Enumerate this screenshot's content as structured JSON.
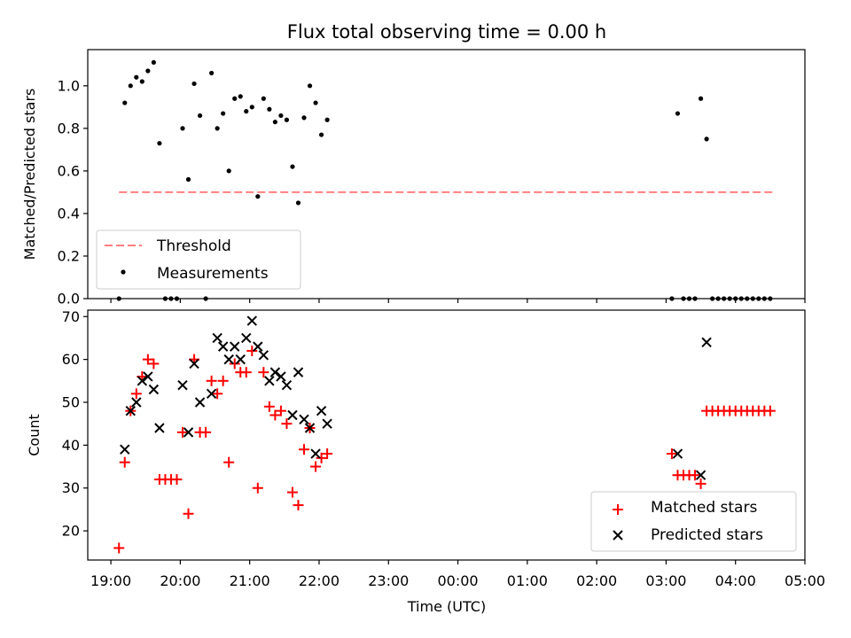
{
  "chart_data": [
    {
      "type": "scatter",
      "title": "Flux total observing time = 0.00 h",
      "ylabel": "Matched/Predicted stars",
      "xlabel": "",
      "ylim": [
        0.0,
        1.17
      ],
      "xlim": [
        "18:40",
        "05:00"
      ],
      "x_ticks": [
        "19:00",
        "20:00",
        "21:00",
        "22:00",
        "23:00",
        "00:00",
        "01:00",
        "02:00",
        "03:00",
        "04:00",
        "05:00"
      ],
      "y_ticks": [
        "0.0",
        "0.2",
        "0.4",
        "0.6",
        "0.8",
        "1.0"
      ],
      "tick_labels_shown": false,
      "legend": {
        "placement": "lower-left",
        "entries": [
          "Threshold",
          "Measurements"
        ]
      },
      "threshold": {
        "name": "Threshold",
        "value": 0.5,
        "x_range": [
          "19:07",
          "04:32"
        ],
        "color": "#ff7f7f",
        "style": "dashed"
      },
      "series": [
        {
          "name": "Measurements",
          "color": "#000000",
          "marker": "dot",
          "points": [
            [
              "19:07",
              0.0
            ],
            [
              "19:12",
              0.92
            ],
            [
              "19:17",
              1.0
            ],
            [
              "19:22",
              1.04
            ],
            [
              "19:27",
              1.02
            ],
            [
              "19:32",
              1.07
            ],
            [
              "19:37",
              1.11
            ],
            [
              "19:42",
              0.73
            ],
            [
              "19:47",
              0.0
            ],
            [
              "19:52",
              0.0
            ],
            [
              "19:57",
              0.0
            ],
            [
              "20:02",
              0.8
            ],
            [
              "20:07",
              0.56
            ],
            [
              "20:12",
              1.01
            ],
            [
              "20:17",
              0.86
            ],
            [
              "20:22",
              0.0
            ],
            [
              "20:27",
              1.06
            ],
            [
              "20:32",
              0.8
            ],
            [
              "20:37",
              0.87
            ],
            [
              "20:42",
              0.6
            ],
            [
              "20:47",
              0.94
            ],
            [
              "20:52",
              0.95
            ],
            [
              "20:57",
              0.88
            ],
            [
              "21:02",
              0.9
            ],
            [
              "21:07",
              0.48
            ],
            [
              "21:12",
              0.94
            ],
            [
              "21:17",
              0.89
            ],
            [
              "21:22",
              0.83
            ],
            [
              "21:27",
              0.86
            ],
            [
              "21:32",
              0.84
            ],
            [
              "21:37",
              0.62
            ],
            [
              "21:42",
              0.45
            ],
            [
              "21:47",
              0.85
            ],
            [
              "21:52",
              1.0
            ],
            [
              "21:57",
              0.92
            ],
            [
              "22:02",
              0.77
            ],
            [
              "22:07",
              0.84
            ],
            [
              "03:05",
              0.0
            ],
            [
              "03:10",
              0.87
            ],
            [
              "03:15",
              0.0
            ],
            [
              "03:20",
              0.0
            ],
            [
              "03:25",
              0.0
            ],
            [
              "03:30",
              0.94
            ],
            [
              "03:35",
              0.75
            ],
            [
              "03:40",
              0.0
            ],
            [
              "03:45",
              0.0
            ],
            [
              "03:50",
              0.0
            ],
            [
              "03:55",
              0.0
            ],
            [
              "04:00",
              0.0
            ],
            [
              "04:05",
              0.0
            ],
            [
              "04:10",
              0.0
            ],
            [
              "04:15",
              0.0
            ],
            [
              "04:20",
              0.0
            ],
            [
              "04:25",
              0.0
            ],
            [
              "04:30",
              0.0
            ]
          ]
        }
      ]
    },
    {
      "type": "scatter",
      "title": "",
      "xlabel": "Time (UTC)",
      "ylabel": "Count",
      "ylim": [
        13.2,
        71.5
      ],
      "xlim": [
        "18:40",
        "05:00"
      ],
      "x_ticks": [
        "19:00",
        "20:00",
        "21:00",
        "22:00",
        "23:00",
        "00:00",
        "01:00",
        "02:00",
        "03:00",
        "04:00",
        "05:00"
      ],
      "y_ticks": [
        "20",
        "30",
        "40",
        "50",
        "60",
        "70"
      ],
      "legend": {
        "placement": "lower-right",
        "entries": [
          "Matched stars",
          "Predicted stars"
        ]
      },
      "series": [
        {
          "name": "Matched stars",
          "color": "#ff0000",
          "marker": "plus",
          "points": [
            [
              "19:07",
              16
            ],
            [
              "19:12",
              36
            ],
            [
              "19:17",
              48
            ],
            [
              "19:22",
              52
            ],
            [
              "19:27",
              56
            ],
            [
              "19:32",
              60
            ],
            [
              "19:37",
              59
            ],
            [
              "19:42",
              32
            ],
            [
              "19:47",
              32
            ],
            [
              "19:52",
              32
            ],
            [
              "19:57",
              32
            ],
            [
              "20:02",
              43
            ],
            [
              "20:07",
              24
            ],
            [
              "20:12",
              60
            ],
            [
              "20:17",
              43
            ],
            [
              "20:22",
              43
            ],
            [
              "20:27",
              55
            ],
            [
              "20:32",
              52
            ],
            [
              "20:37",
              55
            ],
            [
              "20:42",
              36
            ],
            [
              "20:47",
              59
            ],
            [
              "20:52",
              57
            ],
            [
              "20:57",
              57
            ],
            [
              "21:02",
              62
            ],
            [
              "21:07",
              30
            ],
            [
              "21:12",
              57
            ],
            [
              "21:17",
              49
            ],
            [
              "21:22",
              47
            ],
            [
              "21:27",
              48
            ],
            [
              "21:32",
              45
            ],
            [
              "21:37",
              29
            ],
            [
              "21:42",
              26
            ],
            [
              "21:47",
              39
            ],
            [
              "21:52",
              44
            ],
            [
              "21:57",
              35
            ],
            [
              "22:02",
              37
            ],
            [
              "22:07",
              38
            ],
            [
              "03:05",
              38
            ],
            [
              "03:10",
              33
            ],
            [
              "03:15",
              33
            ],
            [
              "03:20",
              33
            ],
            [
              "03:25",
              33
            ],
            [
              "03:30",
              31
            ],
            [
              "03:35",
              48
            ],
            [
              "03:40",
              48
            ],
            [
              "03:45",
              48
            ],
            [
              "03:50",
              48
            ],
            [
              "03:55",
              48
            ],
            [
              "04:00",
              48
            ],
            [
              "04:05",
              48
            ],
            [
              "04:10",
              48
            ],
            [
              "04:15",
              48
            ],
            [
              "04:20",
              48
            ],
            [
              "04:25",
              48
            ],
            [
              "04:30",
              48
            ]
          ]
        },
        {
          "name": "Predicted stars",
          "color": "#000000",
          "marker": "x",
          "points": [
            [
              "19:12",
              39
            ],
            [
              "19:17",
              48
            ],
            [
              "19:22",
              50
            ],
            [
              "19:27",
              55
            ],
            [
              "19:32",
              56
            ],
            [
              "19:37",
              53
            ],
            [
              "19:42",
              44
            ],
            [
              "20:02",
              54
            ],
            [
              "20:07",
              43
            ],
            [
              "20:12",
              59
            ],
            [
              "20:17",
              50
            ],
            [
              "20:27",
              52
            ],
            [
              "20:32",
              65
            ],
            [
              "20:37",
              63
            ],
            [
              "20:42",
              60
            ],
            [
              "20:47",
              63
            ],
            [
              "20:52",
              60
            ],
            [
              "20:57",
              65
            ],
            [
              "21:02",
              69
            ],
            [
              "21:07",
              63
            ],
            [
              "21:12",
              61
            ],
            [
              "21:17",
              55
            ],
            [
              "21:22",
              57
            ],
            [
              "21:27",
              56
            ],
            [
              "21:32",
              54
            ],
            [
              "21:37",
              47
            ],
            [
              "21:42",
              57
            ],
            [
              "21:47",
              46
            ],
            [
              "21:52",
              44
            ],
            [
              "21:57",
              38
            ],
            [
              "22:02",
              48
            ],
            [
              "22:07",
              45
            ],
            [
              "03:10",
              38
            ],
            [
              "03:30",
              33
            ],
            [
              "03:35",
              64
            ]
          ]
        }
      ]
    }
  ]
}
